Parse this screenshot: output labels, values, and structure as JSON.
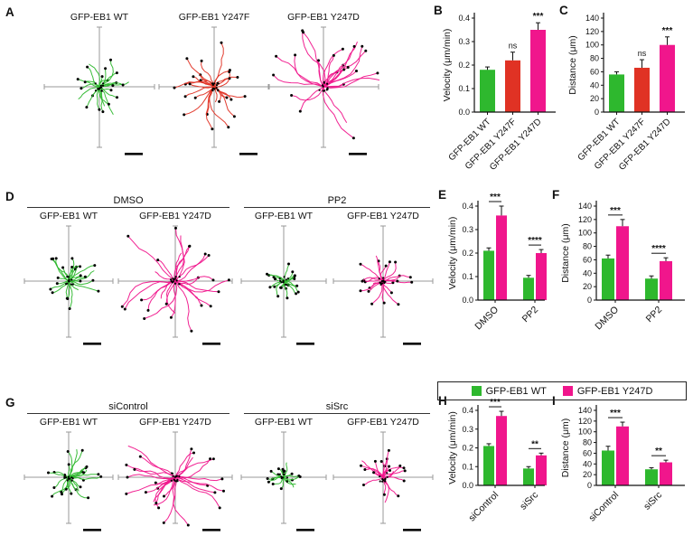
{
  "colors": {
    "green": "#2eb82e",
    "red": "#e03224",
    "magenta": "#f0168c",
    "axis_gray": "#9a9a9a",
    "ink": "#111111"
  },
  "legend": {
    "items": [
      {
        "label": "GFP-EB1 WT",
        "color_key": "green"
      },
      {
        "label": "GFP-EB1 Y247D",
        "color_key": "magenta"
      }
    ]
  },
  "panels": {
    "A": {
      "label": "A",
      "plots": [
        {
          "title": "GFP-EB1 WT",
          "color_key": "green",
          "spread": 0.55,
          "n": 24,
          "seed": 11
        },
        {
          "title": "GFP-EB1 Y247F",
          "color_key": "red",
          "spread": 0.8,
          "n": 26,
          "seed": 22
        },
        {
          "title": "GFP-EB1 Y247D",
          "color_key": "magenta",
          "spread": 1.05,
          "n": 24,
          "seed": 33
        }
      ]
    },
    "D": {
      "label": "D",
      "groups": [
        {
          "title": "DMSO",
          "plots": [
            {
              "title": "GFP-EB1 WT",
              "color_key": "green",
              "spread": 0.65,
              "n": 24,
              "seed": 44
            },
            {
              "title": "GFP-EB1 Y247D",
              "color_key": "magenta",
              "spread": 1.05,
              "n": 26,
              "seed": 55
            }
          ]
        },
        {
          "title": "PP2",
          "plots": [
            {
              "title": "GFP-EB1 WT",
              "color_key": "green",
              "spread": 0.42,
              "n": 20,
              "seed": 66
            },
            {
              "title": "GFP-EB1 Y247D",
              "color_key": "magenta",
              "spread": 0.55,
              "n": 22,
              "seed": 77
            }
          ]
        }
      ]
    },
    "G": {
      "label": "G",
      "groups": [
        {
          "title": "siControl",
          "plots": [
            {
              "title": "GFP-EB1 WT",
              "color_key": "green",
              "spread": 0.7,
              "n": 24,
              "seed": 88
            },
            {
              "title": "GFP-EB1 Y247D",
              "color_key": "magenta",
              "spread": 1.05,
              "n": 26,
              "seed": 99
            }
          ]
        },
        {
          "title": "siSrc",
          "plots": [
            {
              "title": "GFP-EB1 WT",
              "color_key": "green",
              "spread": 0.38,
              "n": 18,
              "seed": 111
            },
            {
              "title": "GFP-EB1 Y247D",
              "color_key": "magenta",
              "spread": 0.5,
              "n": 20,
              "seed": 122
            }
          ]
        }
      ]
    }
  },
  "chart_data": [
    {
      "panel": "B",
      "type": "bar",
      "ylabel": "Velocity (μm/min)",
      "ylim": [
        0,
        0.4
      ],
      "yticks": [
        "0.0",
        "0.1",
        "0.2",
        "0.3",
        "0.4"
      ],
      "categories": [
        "GFP-EB1 WT",
        "GFP-EB1 Y247F",
        "GFP-EB1 Y247D"
      ],
      "values": [
        0.18,
        0.22,
        0.35
      ],
      "errors": [
        0.012,
        0.035,
        0.03
      ],
      "colors": [
        "green",
        "red",
        "magenta"
      ],
      "sig": [
        null,
        "ns",
        "***"
      ]
    },
    {
      "panel": "C",
      "type": "bar",
      "ylabel": "Distance (μm)",
      "ylim": [
        0,
        140
      ],
      "yticks": [
        "0",
        "20",
        "40",
        "60",
        "80",
        "100",
        "120",
        "140"
      ],
      "categories": [
        "GFP-EB1 WT",
        "GFP-EB1 Y247F",
        "GFP-EB1 Y247D"
      ],
      "values": [
        56,
        66,
        100
      ],
      "errors": [
        4,
        12,
        12
      ],
      "colors": [
        "green",
        "red",
        "magenta"
      ],
      "sig": [
        null,
        "ns",
        "***"
      ]
    },
    {
      "panel": "E",
      "type": "bar",
      "ylabel": "Velocity (μm/min)",
      "ylim": [
        0,
        0.4
      ],
      "yticks": [
        "0.0",
        "0.1",
        "0.2",
        "0.3",
        "0.4"
      ],
      "categories": [
        "DMSO",
        "PP2"
      ],
      "series": [
        {
          "name": "GFP-EB1 WT",
          "color_key": "green",
          "values": [
            0.21,
            0.095
          ],
          "errors": [
            0.012,
            0.01
          ]
        },
        {
          "name": "GFP-EB1 Y247D",
          "color_key": "magenta",
          "values": [
            0.36,
            0.2
          ],
          "errors": [
            0.04,
            0.015
          ]
        }
      ],
      "sig": [
        "***",
        "****"
      ]
    },
    {
      "panel": "F",
      "type": "bar",
      "ylabel": "Distance (μm)",
      "ylim": [
        0,
        140
      ],
      "yticks": [
        "0",
        "20",
        "40",
        "60",
        "80",
        "100",
        "120",
        "140"
      ],
      "categories": [
        "DMSO",
        "PP2"
      ],
      "series": [
        {
          "name": "GFP-EB1 WT",
          "color_key": "green",
          "values": [
            62,
            32
          ],
          "errors": [
            5,
            4
          ]
        },
        {
          "name": "GFP-EB1 Y247D",
          "color_key": "magenta",
          "values": [
            110,
            58
          ],
          "errors": [
            10,
            5
          ]
        }
      ],
      "sig": [
        "***",
        "****"
      ]
    },
    {
      "panel": "H",
      "type": "bar",
      "ylabel": "Velocity (μm/min)",
      "ylim": [
        0,
        0.4
      ],
      "yticks": [
        "0.0",
        "0.1",
        "0.2",
        "0.3",
        "0.4"
      ],
      "categories": [
        "siControl",
        "siSrc"
      ],
      "series": [
        {
          "name": "GFP-EB1 WT",
          "color_key": "green",
          "values": [
            0.21,
            0.09
          ],
          "errors": [
            0.012,
            0.01
          ]
        },
        {
          "name": "GFP-EB1 Y247D",
          "color_key": "magenta",
          "values": [
            0.37,
            0.16
          ],
          "errors": [
            0.025,
            0.012
          ]
        }
      ],
      "sig": [
        "***",
        "**"
      ]
    },
    {
      "panel": "I",
      "type": "bar",
      "ylabel": "Distance (μm)",
      "ylim": [
        0,
        140
      ],
      "yticks": [
        "0",
        "20",
        "40",
        "60",
        "80",
        "100",
        "120",
        "140"
      ],
      "categories": [
        "siControl",
        "siSrc"
      ],
      "series": [
        {
          "name": "GFP-EB1 WT",
          "color_key": "green",
          "values": [
            65,
            30
          ],
          "errors": [
            8,
            3
          ]
        },
        {
          "name": "GFP-EB1 Y247D",
          "color_key": "magenta",
          "values": [
            110,
            43
          ],
          "errors": [
            8,
            4
          ]
        }
      ],
      "sig": [
        "***",
        "**"
      ]
    }
  ]
}
